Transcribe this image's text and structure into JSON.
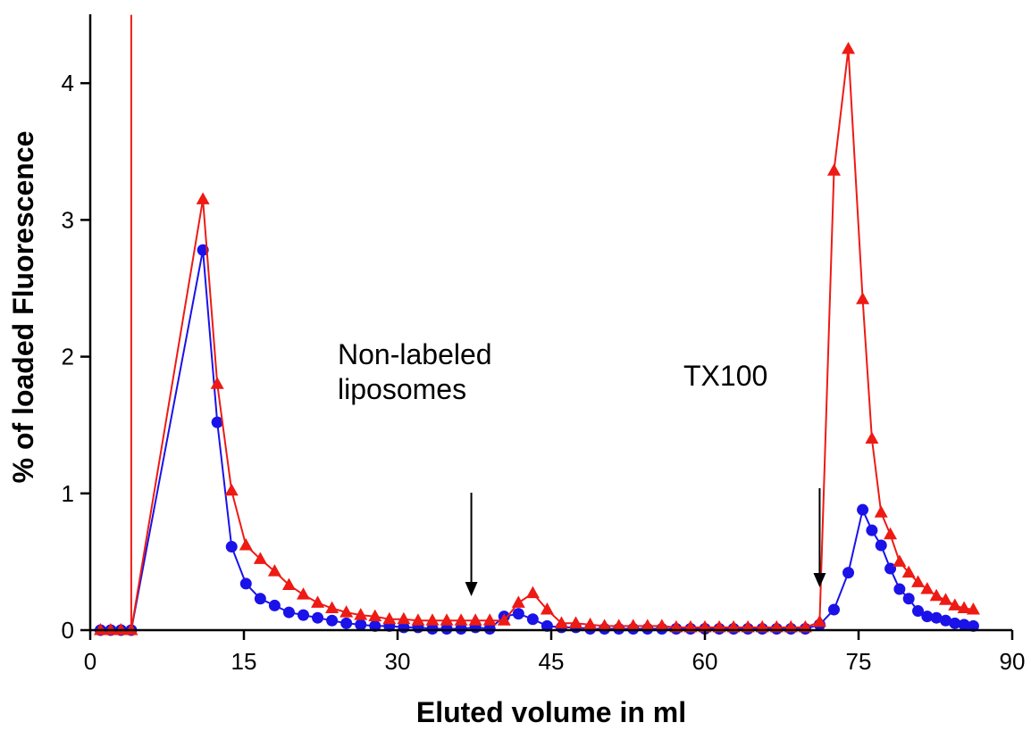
{
  "chart_data": {
    "type": "line",
    "xlabel": "Eluted volume in ml",
    "ylabel": "% of loaded Fluorescence",
    "xlim": [
      0,
      90
    ],
    "ylim": [
      0,
      4.5
    ],
    "xticks": [
      "0",
      "15",
      "30",
      "45",
      "60",
      "75",
      "90"
    ],
    "yticks": [
      "0",
      "1",
      "2",
      "3",
      "4"
    ],
    "grid": false,
    "legend": "none",
    "annotations": [
      {
        "lines": [
          "Non-labeled",
          "liposomes"
        ],
        "arrow_x": 37.2
      },
      {
        "lines": [
          "TX100"
        ],
        "arrow_x": 71.2
      }
    ],
    "series": [
      {
        "marker": "circle",
        "color": "#1a12e8",
        "x": [
          1.0,
          2.0,
          3.0,
          4.0,
          11.0,
          12.4,
          13.8,
          15.2,
          16.6,
          18.0,
          19.4,
          20.8,
          22.2,
          23.6,
          25.0,
          26.4,
          27.8,
          29.2,
          30.6,
          32.0,
          33.4,
          34.8,
          36.2,
          37.6,
          39.0,
          40.4,
          41.8,
          43.2,
          44.6,
          46.0,
          47.4,
          48.8,
          50.2,
          51.6,
          53.0,
          54.4,
          55.8,
          57.2,
          58.6,
          60.0,
          61.4,
          62.8,
          64.2,
          65.6,
          67.0,
          68.4,
          69.8,
          71.2,
          72.6,
          74.0,
          75.4,
          76.3,
          77.2,
          78.1,
          79.0,
          79.9,
          80.8,
          81.7,
          82.6,
          83.5,
          84.4,
          85.3,
          86.2
        ],
        "y": [
          0.0,
          0.0,
          0.0,
          0.0,
          2.78,
          1.52,
          0.61,
          0.34,
          0.23,
          0.18,
          0.13,
          0.11,
          0.09,
          0.07,
          0.05,
          0.04,
          0.03,
          0.03,
          0.02,
          0.02,
          0.01,
          0.01,
          0.01,
          0.02,
          0.01,
          0.1,
          0.12,
          0.08,
          0.03,
          0.02,
          0.02,
          0.01,
          0.01,
          0.01,
          0.01,
          0.01,
          0.01,
          0.01,
          0.01,
          0.01,
          0.01,
          0.01,
          0.01,
          0.01,
          0.01,
          0.01,
          0.01,
          0.04,
          0.15,
          0.42,
          0.88,
          0.73,
          0.62,
          0.45,
          0.3,
          0.23,
          0.14,
          0.1,
          0.09,
          0.07,
          0.05,
          0.04,
          0.03
        ]
      },
      {
        "marker": "triangle",
        "color": "#ee1a14",
        "x": [
          1.0,
          2.0,
          3.0,
          4.0,
          4.0,
          4.0,
          11.0,
          12.4,
          13.8,
          15.2,
          16.6,
          18.0,
          19.4,
          20.8,
          22.2,
          23.6,
          25.0,
          26.4,
          27.8,
          29.2,
          30.6,
          32.0,
          33.4,
          34.8,
          36.2,
          37.6,
          39.0,
          40.4,
          41.8,
          43.2,
          44.6,
          46.0,
          47.4,
          48.8,
          50.2,
          51.6,
          53.0,
          54.4,
          55.8,
          57.2,
          58.6,
          60.0,
          61.4,
          62.8,
          64.2,
          65.6,
          67.0,
          68.4,
          69.8,
          71.2,
          72.6,
          74.0,
          75.4,
          76.3,
          77.2,
          78.1,
          79.0,
          79.9,
          80.8,
          81.7,
          82.6,
          83.5,
          84.4,
          85.3,
          86.2
        ],
        "y": [
          0.0,
          0.0,
          0.0,
          0.0,
          4.5,
          0.0,
          3.15,
          1.8,
          1.02,
          0.62,
          0.52,
          0.43,
          0.33,
          0.26,
          0.2,
          0.16,
          0.13,
          0.11,
          0.1,
          0.08,
          0.08,
          0.07,
          0.07,
          0.07,
          0.07,
          0.07,
          0.07,
          0.07,
          0.2,
          0.27,
          0.15,
          0.05,
          0.05,
          0.04,
          0.03,
          0.03,
          0.03,
          0.03,
          0.03,
          0.02,
          0.02,
          0.02,
          0.02,
          0.02,
          0.02,
          0.02,
          0.02,
          0.02,
          0.02,
          0.06,
          3.36,
          4.25,
          2.42,
          1.4,
          0.86,
          0.7,
          0.5,
          0.42,
          0.35,
          0.3,
          0.25,
          0.22,
          0.18,
          0.16,
          0.15
        ]
      }
    ]
  }
}
